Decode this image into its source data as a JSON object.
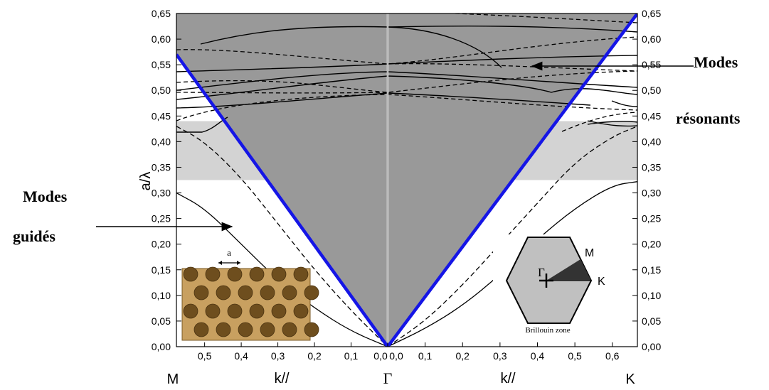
{
  "chart_data": {
    "type": "line",
    "title": "",
    "xlabel_left": "k//",
    "xlabel_right": "k//",
    "ylabel": "a/λ",
    "ylim": [
      0,
      0.65
    ],
    "y_ticks": [
      "0,00",
      "0,05",
      "0,10",
      "0,15",
      "0,20",
      "0,25",
      "0,30",
      "0,35",
      "0,40",
      "0,45",
      "0,50",
      "0,55",
      "0,60",
      "0,65"
    ],
    "x_ticks_left": [
      "0,5",
      "0,4",
      "0,3",
      "0,2",
      "0,1",
      "0,0"
    ],
    "x_ticks_right": [
      "0,0",
      "0,1",
      "0,2",
      "0,3",
      "0,4",
      "0,5",
      "0,6"
    ],
    "x_range_left": [
      0.577,
      0
    ],
    "x_range_right": [
      0,
      0.667
    ],
    "point_labels": {
      "M": "M",
      "Gamma": "Γ",
      "K": "K"
    },
    "photonic_band_gap": [
      0.325,
      0.44
    ],
    "light_line": {
      "left": {
        "k": [
          0,
          0.577
        ],
        "y": [
          0,
          0.57
        ]
      },
      "right": {
        "k": [
          0,
          0.667
        ],
        "y": [
          0,
          0.65
        ]
      }
    },
    "series": [
      {
        "style": "solid",
        "side": "left",
        "k": [
          0.577,
          0.5,
          0.4,
          0.3,
          0.2,
          0.1,
          0
        ],
        "y": [
          0.3,
          0.27,
          0.2,
          0.13,
          0.075,
          0.03,
          0.0
        ]
      },
      {
        "style": "dashed",
        "side": "left",
        "k": [
          0.577,
          0.5,
          0.4,
          0.3,
          0.2,
          0.1,
          0
        ],
        "y": [
          0.43,
          0.4,
          0.33,
          0.24,
          0.15,
          0.07,
          0.0
        ]
      },
      {
        "style": "solid",
        "side": "right",
        "k": [
          0,
          0.1,
          0.2,
          0.3,
          0.4,
          0.5,
          0.6,
          0.667
        ],
        "y": [
          0.0,
          0.035,
          0.08,
          0.14,
          0.21,
          0.27,
          0.315,
          0.322
        ]
      },
      {
        "style": "dashed",
        "side": "right",
        "k": [
          0,
          0.1,
          0.2,
          0.3,
          0.4,
          0.5,
          0.6,
          0.667
        ],
        "y": [
          0.0,
          0.05,
          0.12,
          0.2,
          0.28,
          0.36,
          0.41,
          0.43
        ]
      }
    ]
  },
  "annotations": {
    "resonant_line1": "Modes",
    "resonant_line2": "résonants",
    "guided_line1": "Modes",
    "guided_line2": "guidés"
  },
  "insets": {
    "lattice_label": "a",
    "brillouin_caption": "Brillouin zone",
    "bz_gamma": "Γ",
    "bz_m": "M",
    "bz_k": "K"
  },
  "colors": {
    "light_cone": "#999999",
    "band_gap": "#d3d3d3",
    "light_line": "#1515e6",
    "hexagon": "#c0c0c0",
    "irreducible_zone": "#333333",
    "crystal": "#c8a060"
  }
}
